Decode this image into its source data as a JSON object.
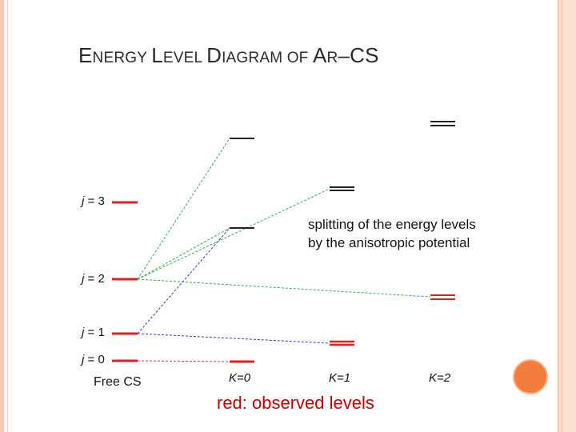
{
  "slide": {
    "title_parts": [
      {
        "text": "E",
        "style": "cap"
      },
      {
        "text": "NERGY ",
        "style": "sc"
      },
      {
        "text": "L",
        "style": "cap"
      },
      {
        "text": "EVEL ",
        "style": "sc"
      },
      {
        "text": "D",
        "style": "cap"
      },
      {
        "text": "IAGRAM OF ",
        "style": "sc"
      },
      {
        "text": "A",
        "style": "cap"
      },
      {
        "text": "R",
        "style": "sc"
      },
      {
        "text": "–CS",
        "style": "cap"
      }
    ],
    "note_line1": "splitting of the energy levels",
    "note_line2": "by the anisotropic potential",
    "legend": "red: observed levels"
  },
  "free_cs": {
    "label": "Free CS",
    "levels": [
      {
        "j": "3",
        "observed": true
      },
      {
        "j": "2",
        "observed": true
      },
      {
        "j": "1",
        "observed": true
      },
      {
        "j": "0",
        "observed": true
      }
    ]
  },
  "k_columns": [
    {
      "label": "K=0"
    },
    {
      "label": "K=1"
    },
    {
      "label": "K=2"
    }
  ],
  "colors": {
    "observed": "#e02020",
    "unobserved": "#222222",
    "green_link": "#3aaa55",
    "blue_link": "#3a3aaa",
    "red_link": "#c04040",
    "accent_circle": "#f47c3c",
    "frame": "#f6c9b6"
  }
}
